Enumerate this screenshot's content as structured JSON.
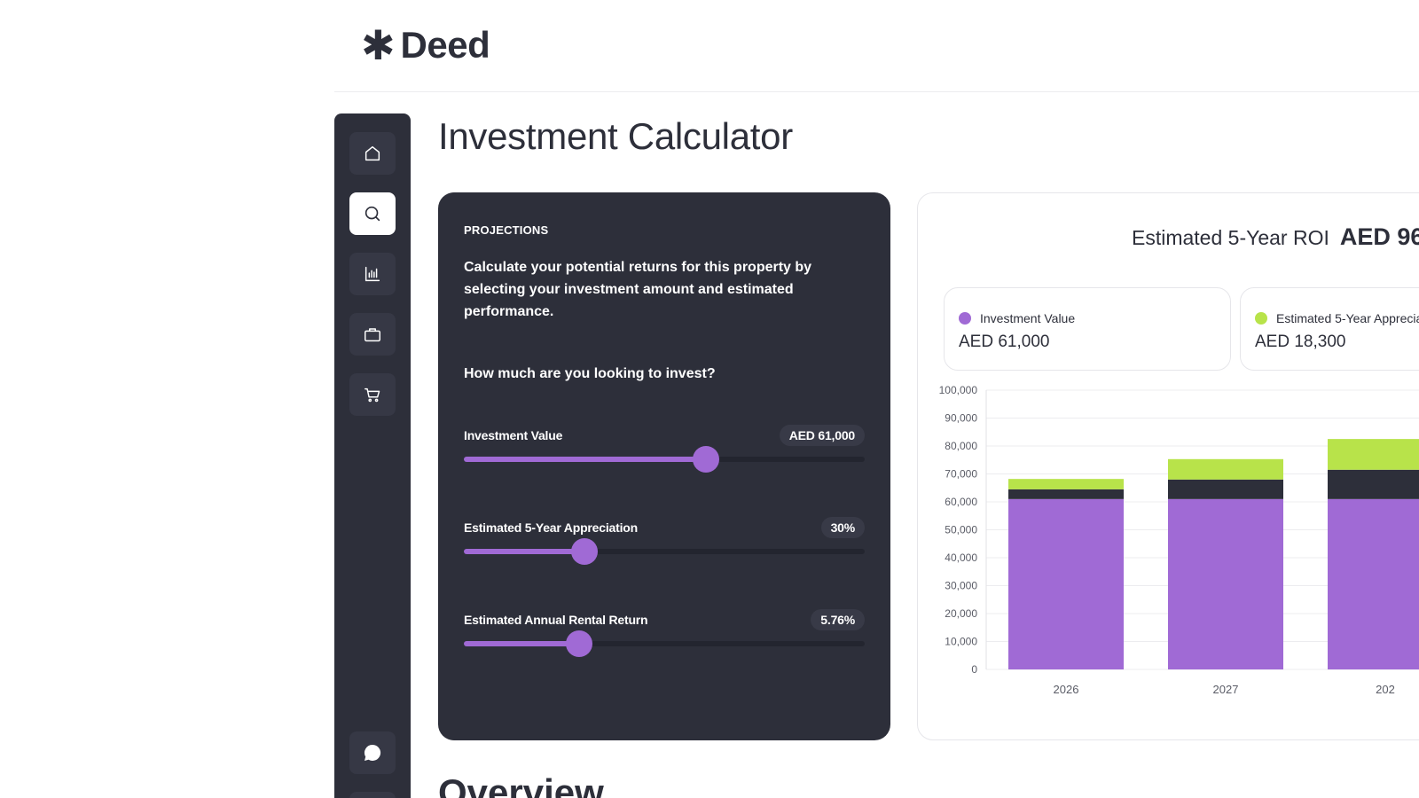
{
  "app": {
    "logo_mark": "✱",
    "logo_text": "Deed"
  },
  "sidebar": {
    "items": [
      {
        "icon": "home-icon",
        "active": false
      },
      {
        "icon": "search-icon",
        "active": true
      },
      {
        "icon": "analytics-icon",
        "active": false
      },
      {
        "icon": "briefcase-icon",
        "active": false
      },
      {
        "icon": "cart-icon",
        "active": false
      }
    ],
    "bottom": [
      {
        "icon": "chat-icon"
      }
    ]
  },
  "page": {
    "title": "Investment Calculator",
    "next_section": "Overview"
  },
  "calculator": {
    "eyebrow": "PROJECTIONS",
    "description": "Calculate your potential returns for this property by selecting your investment amount and estimated performance.",
    "question": "How much are you looking to invest?",
    "sliders": [
      {
        "label": "Investment Value",
        "value": "AED 61,000",
        "fraction": 0.605
      },
      {
        "label": "Estimated 5-Year Appreciation",
        "value": "30%",
        "fraction": 0.3
      },
      {
        "label": "Estimated Annual Rental Return",
        "value": "5.76%",
        "fraction": 0.288
      }
    ]
  },
  "roi": {
    "label": "Estimated 5-Year ROI",
    "amount": "AED 96",
    "stats": [
      {
        "label": "Investment Value",
        "value": "AED 61,000",
        "color": "#a06ad5"
      },
      {
        "label": "Estimated 5-Year Apprecia",
        "value": "AED 18,300",
        "color": "#b8e34a"
      }
    ]
  },
  "colors": {
    "investment": "#a06ad5",
    "rental": "#2d2f3a",
    "appreciation": "#b8e34a",
    "dark": "#2d2f3a"
  },
  "chart_data": {
    "type": "bar",
    "stacked": true,
    "categories": [
      "2026",
      "2027",
      "202"
    ],
    "ylim": [
      0,
      100000
    ],
    "yticks": [
      "0",
      "10,000",
      "20,000",
      "30,000",
      "40,000",
      "50,000",
      "60,000",
      "70,000",
      "80,000",
      "90,000",
      "100,000"
    ],
    "series": [
      {
        "values": [
          61000,
          61000,
          61000
        ],
        "color": "#a06ad5"
      },
      {
        "values": [
          3500,
          7000,
          10500
        ],
        "color": "#2d2f3a"
      },
      {
        "values": [
          3700,
          7300,
          11000
        ],
        "color": "#b8e34a"
      }
    ],
    "grid": true
  }
}
